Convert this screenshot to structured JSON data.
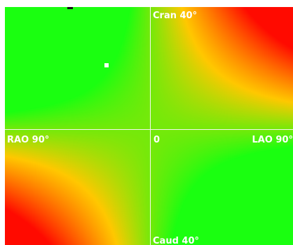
{
  "viewer": {
    "label_top": "Cran 40°",
    "label_left": "RAO 90°",
    "label_center": "0",
    "label_right": "LAO 90°",
    "label_bottom": "Caud 40°"
  },
  "colors": {
    "optimal": "#1aff10",
    "mid": "#ffc800",
    "poor": "#ff0a00",
    "axis": "#f4f7ee"
  }
}
